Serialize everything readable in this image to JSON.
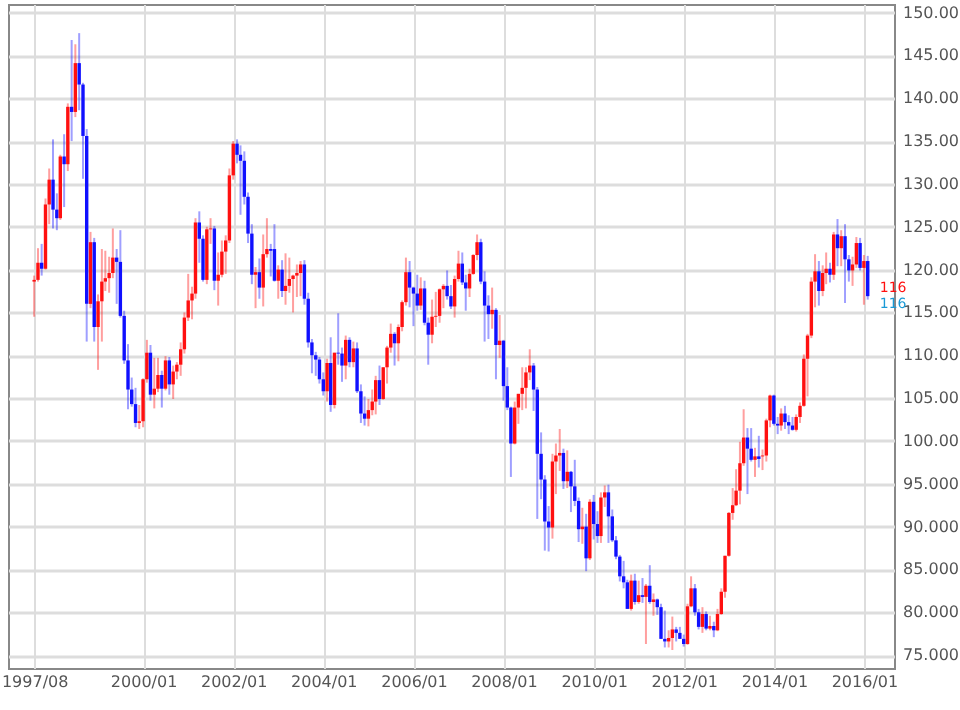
{
  "chart_data": {
    "type": "candlestick",
    "x": [
      "1997-08",
      "1997-09",
      "1997-10",
      "1997-11",
      "1997-12",
      "1998-01",
      "1998-02",
      "1998-03",
      "1998-04",
      "1998-05",
      "1998-06",
      "1998-07",
      "1998-08",
      "1998-09",
      "1998-10",
      "1998-11",
      "1998-12",
      "1999-01",
      "1999-02",
      "1999-03",
      "1999-04",
      "1999-05",
      "1999-06",
      "1999-07",
      "1999-08",
      "1999-09",
      "1999-10",
      "1999-11",
      "1999-12",
      "2000-01",
      "2000-02",
      "2000-03",
      "2000-04",
      "2000-05",
      "2000-06",
      "2000-07",
      "2000-08",
      "2000-09",
      "2000-10",
      "2000-11",
      "2000-12",
      "2001-01",
      "2001-02",
      "2001-03",
      "2001-04",
      "2001-05",
      "2001-06",
      "2001-07",
      "2001-08",
      "2001-09",
      "2001-10",
      "2001-11",
      "2001-12",
      "2002-01",
      "2002-02",
      "2002-03",
      "2002-04",
      "2002-05",
      "2002-06",
      "2002-07",
      "2002-08",
      "2002-09",
      "2002-10",
      "2002-11",
      "2002-12",
      "2003-01",
      "2003-02",
      "2003-03",
      "2003-04",
      "2003-05",
      "2003-06",
      "2003-07",
      "2003-08",
      "2003-09",
      "2003-10",
      "2003-11",
      "2003-12",
      "2004-01",
      "2004-02",
      "2004-03",
      "2004-04",
      "2004-05",
      "2004-06",
      "2004-07",
      "2004-08",
      "2004-09",
      "2004-10",
      "2004-11",
      "2004-12",
      "2005-01",
      "2005-02",
      "2005-03",
      "2005-04",
      "2005-05",
      "2005-06",
      "2005-07",
      "2005-08",
      "2005-09",
      "2005-10",
      "2005-11",
      "2005-12",
      "2006-01",
      "2006-02",
      "2006-03",
      "2006-04",
      "2006-05",
      "2006-06",
      "2006-07",
      "2006-08",
      "2006-09",
      "2006-10",
      "2006-11",
      "2006-12",
      "2007-01",
      "2007-02",
      "2007-03",
      "2007-04",
      "2007-05",
      "2007-06",
      "2007-07",
      "2007-08",
      "2007-09",
      "2007-10",
      "2007-11",
      "2007-12",
      "2008-01",
      "2008-02",
      "2008-03",
      "2008-04",
      "2008-05",
      "2008-06",
      "2008-07",
      "2008-08",
      "2008-09",
      "2008-10",
      "2008-11",
      "2008-12",
      "2009-01",
      "2009-02",
      "2009-03",
      "2009-04",
      "2009-05",
      "2009-06",
      "2009-07",
      "2009-08",
      "2009-09",
      "2009-10",
      "2009-11",
      "2009-12",
      "2010-01",
      "2010-02",
      "2010-03",
      "2010-04",
      "2010-05",
      "2010-06",
      "2010-07",
      "2010-08",
      "2010-09",
      "2010-10",
      "2010-11",
      "2010-12",
      "2011-01",
      "2011-02",
      "2011-03",
      "2011-04",
      "2011-05",
      "2011-06",
      "2011-07",
      "2011-08",
      "2011-09",
      "2011-10",
      "2011-11",
      "2011-12",
      "2012-01",
      "2012-02",
      "2012-03",
      "2012-04",
      "2012-05",
      "2012-06",
      "2012-07",
      "2012-08",
      "2012-09",
      "2012-10",
      "2012-11",
      "2012-12",
      "2013-01",
      "2013-02",
      "2013-03",
      "2013-04",
      "2013-05",
      "2013-06",
      "2013-07",
      "2013-08",
      "2013-09",
      "2013-10",
      "2013-11",
      "2013-12",
      "2014-01",
      "2014-02",
      "2014-03",
      "2014-04",
      "2014-05",
      "2014-06",
      "2014-07",
      "2014-08",
      "2014-09",
      "2014-10",
      "2014-11",
      "2014-12",
      "2015-01",
      "2015-02",
      "2015-03",
      "2015-04",
      "2015-05",
      "2015-06",
      "2015-07",
      "2015-08",
      "2015-09",
      "2015-10",
      "2015-11",
      "2015-12",
      "2016-01",
      "2016-02"
    ],
    "ohlc": [
      [
        118.6,
        119.3,
        114.5,
        118.8
      ],
      [
        118.8,
        122.5,
        118.6,
        120.8
      ],
      [
        120.8,
        123.0,
        119.3,
        120.1
      ],
      [
        120.1,
        128.3,
        120.0,
        127.6
      ],
      [
        127.6,
        131.8,
        125.3,
        130.5
      ],
      [
        130.5,
        135.2,
        124.8,
        127.0
      ],
      [
        127.0,
        128.9,
        124.6,
        126.0
      ],
      [
        126.0,
        133.4,
        125.8,
        133.2
      ],
      [
        133.2,
        135.8,
        127.3,
        132.3
      ],
      [
        132.3,
        139.4,
        131.5,
        139.0
      ],
      [
        139.0,
        146.8,
        135.0,
        138.4
      ],
      [
        138.4,
        146.3,
        137.8,
        144.1
      ],
      [
        144.1,
        147.6,
        138.6,
        141.6
      ],
      [
        141.6,
        141.8,
        130.6,
        135.6
      ],
      [
        135.6,
        136.4,
        111.6,
        116.0
      ],
      [
        116.0,
        124.4,
        115.5,
        123.2
      ],
      [
        123.2,
        123.7,
        111.6,
        113.3
      ],
      [
        113.3,
        117.1,
        108.3,
        116.3
      ],
      [
        116.3,
        122.4,
        111.6,
        118.6
      ],
      [
        118.6,
        122.2,
        117.5,
        119.0
      ],
      [
        119.0,
        121.5,
        117.3,
        119.6
      ],
      [
        119.6,
        124.8,
        119.0,
        121.4
      ],
      [
        121.4,
        122.4,
        116.0,
        120.9
      ],
      [
        120.9,
        124.6,
        114.4,
        114.6
      ],
      [
        114.6,
        115.2,
        109.0,
        109.4
      ],
      [
        109.4,
        111.3,
        103.7,
        106.0
      ],
      [
        106.0,
        107.4,
        104.0,
        104.3
      ],
      [
        104.3,
        106.2,
        101.6,
        102.1
      ],
      [
        102.1,
        104.2,
        101.4,
        102.3
      ],
      [
        102.3,
        107.3,
        101.6,
        107.2
      ],
      [
        107.2,
        111.8,
        106.8,
        110.3
      ],
      [
        110.3,
        111.2,
        104.7,
        105.4
      ],
      [
        105.4,
        109.7,
        103.8,
        106.1
      ],
      [
        106.1,
        109.7,
        105.7,
        107.7
      ],
      [
        107.7,
        108.2,
        103.9,
        106.1
      ],
      [
        106.1,
        109.9,
        105.9,
        109.4
      ],
      [
        109.4,
        109.8,
        105.4,
        106.6
      ],
      [
        106.6,
        108.8,
        104.9,
        108.1
      ],
      [
        108.1,
        109.2,
        107.2,
        108.9
      ],
      [
        108.9,
        111.5,
        107.6,
        110.7
      ],
      [
        110.7,
        115.0,
        110.2,
        114.4
      ],
      [
        114.4,
        119.5,
        114.0,
        116.4
      ],
      [
        116.4,
        118.0,
        114.2,
        117.2
      ],
      [
        117.2,
        126.0,
        116.6,
        125.5
      ],
      [
        125.5,
        126.8,
        120.8,
        123.6
      ],
      [
        123.6,
        124.0,
        118.6,
        118.8
      ],
      [
        118.8,
        125.0,
        118.3,
        124.7
      ],
      [
        124.7,
        126.0,
        123.0,
        124.8
      ],
      [
        124.8,
        125.1,
        117.6,
        118.7
      ],
      [
        118.7,
        122.0,
        115.8,
        119.4
      ],
      [
        119.4,
        123.4,
        119.1,
        122.1
      ],
      [
        122.1,
        124.0,
        119.5,
        123.4
      ],
      [
        123.4,
        131.8,
        123.1,
        131.0
      ],
      [
        131.0,
        135.0,
        130.5,
        134.7
      ],
      [
        134.7,
        135.2,
        132.4,
        133.4
      ],
      [
        133.4,
        134.5,
        126.4,
        132.7
      ],
      [
        132.7,
        133.8,
        127.6,
        128.5
      ],
      [
        128.5,
        129.0,
        123.1,
        124.2
      ],
      [
        124.2,
        125.3,
        118.3,
        119.4
      ],
      [
        119.4,
        120.3,
        115.5,
        119.7
      ],
      [
        119.7,
        121.3,
        116.6,
        117.9
      ],
      [
        117.9,
        124.1,
        115.7,
        121.8
      ],
      [
        121.8,
        126.0,
        121.4,
        122.4
      ],
      [
        122.4,
        123.0,
        119.2,
        122.2
      ],
      [
        122.4,
        125.3,
        118.6,
        118.7
      ],
      [
        118.7,
        120.5,
        116.6,
        120.0
      ],
      [
        120.0,
        121.1,
        116.8,
        117.5
      ],
      [
        117.5,
        121.9,
        115.9,
        118.1
      ],
      [
        118.1,
        121.4,
        117.3,
        118.9
      ],
      [
        118.9,
        119.4,
        115.0,
        119.3
      ],
      [
        119.3,
        120.6,
        116.8,
        119.6
      ],
      [
        119.6,
        121.0,
        116.9,
        120.6
      ],
      [
        120.6,
        121.1,
        115.9,
        116.6
      ],
      [
        116.6,
        117.3,
        110.9,
        111.5
      ],
      [
        111.5,
        111.9,
        107.9,
        110.0
      ],
      [
        110.0,
        110.4,
        107.6,
        109.5
      ],
      [
        109.5,
        109.8,
        106.7,
        107.2
      ],
      [
        107.2,
        108.0,
        105.3,
        105.8
      ],
      [
        105.8,
        109.6,
        104.6,
        109.1
      ],
      [
        109.1,
        112.1,
        103.4,
        104.2
      ],
      [
        104.2,
        110.3,
        103.8,
        110.3
      ],
      [
        110.3,
        114.9,
        108.9,
        110.2
      ],
      [
        110.2,
        110.9,
        106.9,
        108.8
      ],
      [
        108.8,
        112.3,
        107.2,
        111.8
      ],
      [
        111.8,
        112.1,
        108.6,
        109.2
      ],
      [
        109.2,
        111.6,
        108.6,
        110.8
      ],
      [
        110.8,
        111.5,
        105.6,
        105.8
      ],
      [
        105.8,
        106.6,
        102.1,
        103.2
      ],
      [
        103.2,
        105.2,
        101.8,
        102.6
      ],
      [
        102.6,
        104.9,
        101.7,
        103.6
      ],
      [
        103.6,
        106.0,
        103.0,
        104.6
      ],
      [
        104.6,
        107.6,
        103.1,
        107.1
      ],
      [
        107.1,
        108.8,
        104.2,
        104.9
      ],
      [
        104.9,
        108.6,
        104.8,
        108.6
      ],
      [
        108.6,
        111.1,
        106.7,
        110.9
      ],
      [
        110.9,
        113.7,
        110.3,
        112.5
      ],
      [
        112.5,
        112.7,
        108.8,
        111.4
      ],
      [
        111.4,
        113.6,
        109.3,
        113.3
      ],
      [
        113.3,
        116.4,
        112.8,
        116.2
      ],
      [
        116.2,
        121.4,
        115.8,
        119.7
      ],
      [
        119.7,
        121.0,
        115.6,
        117.9
      ],
      [
        117.9,
        118.0,
        113.4,
        117.2
      ],
      [
        117.2,
        119.4,
        115.2,
        115.8
      ],
      [
        115.8,
        119.1,
        115.3,
        117.8
      ],
      [
        117.8,
        118.7,
        113.5,
        113.8
      ],
      [
        113.8,
        114.4,
        108.9,
        112.4
      ],
      [
        112.4,
        116.5,
        111.4,
        114.5
      ],
      [
        114.5,
        117.4,
        113.3,
        114.6
      ],
      [
        114.6,
        117.8,
        113.8,
        117.7
      ],
      [
        117.7,
        118.3,
        115.5,
        118.1
      ],
      [
        118.1,
        119.9,
        116.5,
        116.9
      ],
      [
        116.9,
        118.2,
        115.4,
        115.7
      ],
      [
        115.7,
        119.3,
        114.4,
        118.9
      ],
      [
        118.9,
        122.2,
        118.6,
        120.7
      ],
      [
        120.7,
        122.0,
        118.2,
        118.5
      ],
      [
        118.5,
        119.4,
        115.2,
        117.8
      ],
      [
        117.8,
        120.1,
        116.8,
        119.5
      ],
      [
        119.5,
        121.8,
        119.4,
        121.7
      ],
      [
        121.7,
        124.1,
        121.1,
        123.2
      ],
      [
        123.2,
        123.6,
        118.3,
        118.6
      ],
      [
        118.6,
        119.8,
        111.6,
        115.8
      ],
      [
        115.8,
        117.0,
        111.9,
        114.8
      ],
      [
        114.8,
        117.9,
        113.1,
        115.3
      ],
      [
        115.3,
        115.5,
        107.2,
        111.2
      ],
      [
        111.2,
        114.7,
        109.7,
        111.7
      ],
      [
        111.7,
        111.8,
        104.7,
        106.4
      ],
      [
        106.4,
        108.6,
        103.6,
        103.9
      ],
      [
        103.9,
        104.0,
        95.8,
        99.7
      ],
      [
        99.7,
        104.6,
        99.6,
        103.9
      ],
      [
        103.9,
        105.5,
        102.0,
        105.5
      ],
      [
        105.5,
        108.6,
        103.6,
        106.2
      ],
      [
        106.2,
        108.6,
        103.8,
        108.0
      ],
      [
        108.0,
        110.7,
        107.1,
        108.8
      ],
      [
        108.8,
        109.1,
        103.5,
        106.0
      ],
      [
        106.0,
        106.3,
        90.9,
        98.5
      ],
      [
        98.5,
        101.0,
        93.2,
        95.5
      ],
      [
        95.5,
        96.0,
        87.2,
        90.6
      ],
      [
        90.6,
        92.4,
        87.1,
        89.9
      ],
      [
        89.9,
        98.5,
        88.6,
        97.6
      ],
      [
        97.6,
        99.7,
        93.8,
        98.3
      ],
      [
        98.3,
        101.4,
        96.5,
        98.6
      ],
      [
        98.6,
        99.1,
        94.4,
        95.3
      ],
      [
        95.3,
        98.9,
        94.5,
        96.4
      ],
      [
        96.4,
        96.5,
        91.7,
        94.7
      ],
      [
        94.7,
        97.8,
        92.4,
        93.0
      ],
      [
        93.0,
        93.4,
        88.2,
        89.7
      ],
      [
        89.7,
        92.2,
        88.0,
        90.0
      ],
      [
        90.0,
        91.5,
        84.8,
        86.3
      ],
      [
        86.3,
        93.2,
        86.1,
        92.9
      ],
      [
        92.9,
        93.7,
        88.5,
        90.3
      ],
      [
        90.3,
        91.8,
        88.1,
        88.9
      ],
      [
        88.9,
        94.0,
        88.1,
        93.4
      ],
      [
        93.4,
        94.8,
        92.3,
        94.0
      ],
      [
        94.0,
        94.9,
        88.1,
        91.2
      ],
      [
        91.2,
        92.0,
        88.2,
        88.4
      ],
      [
        88.4,
        88.9,
        86.2,
        86.5
      ],
      [
        86.5,
        86.7,
        83.6,
        84.2
      ],
      [
        84.2,
        86.0,
        82.8,
        83.5
      ],
      [
        83.5,
        83.8,
        80.4,
        80.4
      ],
      [
        80.4,
        84.4,
        80.2,
        83.7
      ],
      [
        83.7,
        84.5,
        80.9,
        81.2
      ],
      [
        81.2,
        83.7,
        81.0,
        82.0
      ],
      [
        82.0,
        84.0,
        81.1,
        81.8
      ],
      [
        81.8,
        83.3,
        76.3,
        83.1
      ],
      [
        83.1,
        85.5,
        81.0,
        81.2
      ],
      [
        81.2,
        82.2,
        79.6,
        81.5
      ],
      [
        81.5,
        81.6,
        79.7,
        80.6
      ],
      [
        80.6,
        81.0,
        76.9,
        76.9
      ],
      [
        76.9,
        80.2,
        75.9,
        76.6
      ],
      [
        76.6,
        77.9,
        75.9,
        77.0
      ],
      [
        77.0,
        79.5,
        75.6,
        78.0
      ],
      [
        78.0,
        78.3,
        76.6,
        77.6
      ],
      [
        77.6,
        78.3,
        76.9,
        76.9
      ],
      [
        76.9,
        77.4,
        76.0,
        76.3
      ],
      [
        76.3,
        81.0,
        76.2,
        80.7
      ],
      [
        80.7,
        84.2,
        80.6,
        82.8
      ],
      [
        82.8,
        83.3,
        79.6,
        80.0
      ],
      [
        80.0,
        80.4,
        78.0,
        78.3
      ],
      [
        78.3,
        80.6,
        77.6,
        79.8
      ],
      [
        79.8,
        80.1,
        77.9,
        78.1
      ],
      [
        78.1,
        79.6,
        77.9,
        78.4
      ],
      [
        78.4,
        78.9,
        77.1,
        77.9
      ],
      [
        77.9,
        80.4,
        77.8,
        79.8
      ],
      [
        79.8,
        82.8,
        79.7,
        82.4
      ],
      [
        82.4,
        86.6,
        81.7,
        86.6
      ],
      [
        86.6,
        91.7,
        86.5,
        91.6
      ],
      [
        91.6,
        94.5,
        90.8,
        92.5
      ],
      [
        92.5,
        96.7,
        92.4,
        94.2
      ],
      [
        94.2,
        99.9,
        92.6,
        97.4
      ],
      [
        97.4,
        103.7,
        97.1,
        100.4
      ],
      [
        100.4,
        101.5,
        93.8,
        99.1
      ],
      [
        99.1,
        101.5,
        97.6,
        97.8
      ],
      [
        97.8,
        99.2,
        95.8,
        98.2
      ],
      [
        98.2,
        100.6,
        96.9,
        97.9
      ],
      [
        98.2,
        99.0,
        96.6,
        98.3
      ],
      [
        98.3,
        102.6,
        97.6,
        102.4
      ],
      [
        102.4,
        105.4,
        101.6,
        105.3
      ],
      [
        105.3,
        105.4,
        101.8,
        102.0
      ],
      [
        102.0,
        102.8,
        100.8,
        101.8
      ],
      [
        101.8,
        103.8,
        101.2,
        103.2
      ],
      [
        103.2,
        104.1,
        101.4,
        102.2
      ],
      [
        102.2,
        103.0,
        100.8,
        101.8
      ],
      [
        101.8,
        102.8,
        101.2,
        101.3
      ],
      [
        101.3,
        103.1,
        101.1,
        102.8
      ],
      [
        102.8,
        104.5,
        102.1,
        104.1
      ],
      [
        104.1,
        110.1,
        104.0,
        109.6
      ],
      [
        109.6,
        112.5,
        105.2,
        112.3
      ],
      [
        112.3,
        119.1,
        112.0,
        118.6
      ],
      [
        118.6,
        121.8,
        115.6,
        119.8
      ],
      [
        119.8,
        121.0,
        115.8,
        117.5
      ],
      [
        117.5,
        120.5,
        116.9,
        119.6
      ],
      [
        119.6,
        122.0,
        118.3,
        120.1
      ],
      [
        120.1,
        120.8,
        118.5,
        119.4
      ],
      [
        119.4,
        124.4,
        118.8,
        124.1
      ],
      [
        124.1,
        125.9,
        120.4,
        122.5
      ],
      [
        122.5,
        124.6,
        120.4,
        123.9
      ],
      [
        123.9,
        125.3,
        116.1,
        121.2
      ],
      [
        121.2,
        121.7,
        118.6,
        119.9
      ],
      [
        119.9,
        121.5,
        118.1,
        120.6
      ],
      [
        120.6,
        123.8,
        120.2,
        123.1
      ],
      [
        123.1,
        123.7,
        119.9,
        120.2
      ],
      [
        120.2,
        121.7,
        115.9,
        121.0
      ],
      [
        121.0,
        121.6,
        116.5,
        116.9
      ]
    ],
    "xlim": [
      "1997-01",
      "2016-09"
    ],
    "xticks": [
      {
        "value": "1997-08",
        "label": "1997/08"
      },
      {
        "value": "2000-01",
        "label": "2000/01"
      },
      {
        "value": "2002-01",
        "label": "2002/01"
      },
      {
        "value": "2004-01",
        "label": "2004/01"
      },
      {
        "value": "2006-01",
        "label": "2006/01"
      },
      {
        "value": "2008-01",
        "label": "2008/01"
      },
      {
        "value": "2010-01",
        "label": "2010/01"
      },
      {
        "value": "2012-01",
        "label": "2012/01"
      },
      {
        "value": "2014-01",
        "label": "2014/01"
      },
      {
        "value": "2016-01",
        "label": "2016/01"
      }
    ],
    "ylim": [
      73.5,
      151
    ],
    "yticks": [
      {
        "value": 75,
        "label": "75.000"
      },
      {
        "value": 80,
        "label": "80.000"
      },
      {
        "value": 85,
        "label": "85.000"
      },
      {
        "value": 90,
        "label": "90.000"
      },
      {
        "value": 95,
        "label": "95.000"
      },
      {
        "value": 100,
        "label": "100.00"
      },
      {
        "value": 105,
        "label": "105.00"
      },
      {
        "value": 110,
        "label": "110.00"
      },
      {
        "value": 115,
        "label": "115.00"
      },
      {
        "value": 120,
        "label": "120.00"
      },
      {
        "value": 125,
        "label": "125.00"
      },
      {
        "value": 130,
        "label": "130.00"
      },
      {
        "value": 135,
        "label": "135.00"
      },
      {
        "value": 140,
        "label": "140.00"
      },
      {
        "value": 145,
        "label": "145.00"
      },
      {
        "value": 150,
        "label": "150.00"
      }
    ],
    "grid": true,
    "annotations": [
      {
        "text": "116",
        "x": "2016-02",
        "y": 116.9
      },
      {
        "text": "116",
        "x": "2016-02",
        "y": 116.9
      }
    ]
  }
}
